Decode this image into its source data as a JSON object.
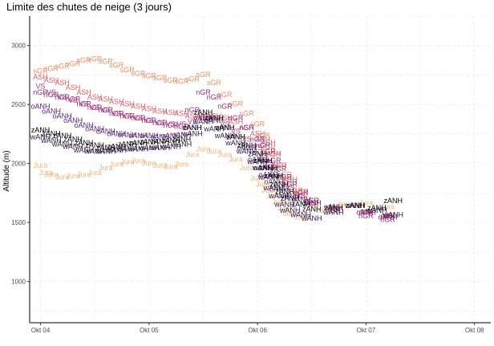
{
  "chart_data": {
    "type": "scatter",
    "title": "Limite des chutes de neige (3 jours)",
    "xlabel": "",
    "ylabel": "Altitude (m)",
    "x_ticks": [
      "Okt 04",
      "Okt 05",
      "Okt 06",
      "Okt 07",
      "Okt 08"
    ],
    "y_ticks": [
      1000,
      1500,
      2000,
      2500,
      3000
    ],
    "xlim": [
      -0.1,
      4.15
    ],
    "ylim": [
      650,
      3250
    ],
    "grid": true,
    "legend": "none",
    "colors": {
      "Jura": "#f0b57a",
      "sGR": "#e98d66",
      "ASH": "#de5d66",
      "VS": "#b23c78",
      "nGR": "#8e2e83",
      "oANH": "#5d2479",
      "wANH": "#2a1742",
      "zANH": "#000000"
    },
    "series": [
      {
        "name": "sGR",
        "points": [
          [
            0.0,
            2780
          ],
          [
            0.1,
            2800
          ],
          [
            0.2,
            2820
          ],
          [
            0.3,
            2840
          ],
          [
            0.4,
            2870
          ],
          [
            0.5,
            2880
          ],
          [
            0.6,
            2860
          ],
          [
            0.7,
            2830
          ],
          [
            0.8,
            2790
          ],
          [
            0.9,
            2760
          ],
          [
            1.0,
            2740
          ],
          [
            1.1,
            2720
          ],
          [
            1.2,
            2700
          ],
          [
            1.3,
            2690
          ],
          [
            1.4,
            2710
          ],
          [
            1.5,
            2750
          ],
          [
            1.6,
            2680
          ],
          [
            1.7,
            2580
          ],
          [
            1.8,
            2500
          ],
          [
            1.9,
            2420
          ],
          [
            2.0,
            2330
          ],
          [
            2.05,
            2230
          ],
          [
            2.1,
            2130
          ],
          [
            2.15,
            2070
          ],
          [
            2.2,
            1980
          ],
          [
            2.25,
            1900
          ],
          [
            2.3,
            1840
          ],
          [
            2.35,
            1770
          ],
          [
            2.4,
            1720
          ],
          [
            2.5,
            1650
          ],
          [
            2.7,
            1600
          ],
          [
            3.0,
            1580
          ],
          [
            3.2,
            1550
          ]
        ]
      },
      {
        "name": "ASH",
        "points": [
          [
            0.0,
            2730
          ],
          [
            0.1,
            2700
          ],
          [
            0.2,
            2680
          ],
          [
            0.3,
            2640
          ],
          [
            0.4,
            2600
          ],
          [
            0.5,
            2560
          ],
          [
            0.6,
            2540
          ],
          [
            0.7,
            2520
          ],
          [
            0.8,
            2500
          ],
          [
            0.9,
            2480
          ],
          [
            1.0,
            2460
          ],
          [
            1.1,
            2440
          ],
          [
            1.2,
            2430
          ],
          [
            1.3,
            2420
          ],
          [
            1.4,
            2400
          ],
          [
            1.5,
            2390
          ],
          [
            1.6,
            2400
          ],
          [
            1.7,
            2380
          ],
          [
            1.8,
            2350
          ],
          [
            1.9,
            2300
          ],
          [
            2.0,
            2250
          ],
          [
            2.05,
            2200
          ],
          [
            2.1,
            2170
          ],
          [
            2.15,
            2080
          ],
          [
            2.2,
            1980
          ],
          [
            2.3,
            1860
          ],
          [
            2.4,
            1760
          ],
          [
            2.5,
            1680
          ],
          [
            2.7,
            1620
          ],
          [
            3.0,
            1580
          ],
          [
            3.2,
            1550
          ]
        ]
      },
      {
        "name": "VS",
        "points": [
          [
            0.0,
            2650
          ],
          [
            0.1,
            2600
          ],
          [
            0.2,
            2560
          ],
          [
            0.3,
            2530
          ],
          [
            0.4,
            2500
          ],
          [
            0.5,
            2470
          ],
          [
            0.6,
            2450
          ],
          [
            0.7,
            2420
          ],
          [
            0.8,
            2400
          ],
          [
            0.9,
            2380
          ],
          [
            1.0,
            2360
          ],
          [
            1.1,
            2340
          ],
          [
            1.2,
            2330
          ],
          [
            1.3,
            2330
          ],
          [
            1.4,
            2350
          ],
          [
            1.5,
            2400
          ],
          [
            1.6,
            2380
          ],
          [
            1.7,
            2330
          ],
          [
            1.8,
            2270
          ],
          [
            1.9,
            2200
          ],
          [
            2.0,
            2130
          ],
          [
            2.05,
            2060
          ],
          [
            2.1,
            2000
          ],
          [
            2.15,
            1940
          ],
          [
            2.2,
            1880
          ],
          [
            2.3,
            1790
          ],
          [
            2.4,
            1720
          ],
          [
            2.5,
            1660
          ],
          [
            2.7,
            1610
          ],
          [
            3.0,
            1580
          ],
          [
            3.2,
            1550
          ]
        ]
      },
      {
        "name": "nGR",
        "points": [
          [
            0.0,
            2600
          ],
          [
            0.1,
            2580
          ],
          [
            0.2,
            2560
          ],
          [
            0.3,
            2540
          ],
          [
            0.4,
            2500
          ],
          [
            0.5,
            2470
          ],
          [
            0.6,
            2450
          ],
          [
            0.7,
            2420
          ],
          [
            0.8,
            2400
          ],
          [
            0.9,
            2380
          ],
          [
            1.0,
            2360
          ],
          [
            1.1,
            2340
          ],
          [
            1.2,
            2320
          ],
          [
            1.3,
            2310
          ],
          [
            1.4,
            2450
          ],
          [
            1.5,
            2600
          ],
          [
            1.6,
            2560
          ],
          [
            1.7,
            2480
          ],
          [
            1.8,
            2380
          ],
          [
            1.9,
            2300
          ],
          [
            2.0,
            2200
          ],
          [
            2.05,
            2150
          ],
          [
            2.1,
            2100
          ],
          [
            2.15,
            2020
          ],
          [
            2.2,
            1950
          ],
          [
            2.25,
            1880
          ],
          [
            2.3,
            1820
          ],
          [
            2.4,
            1750
          ],
          [
            2.5,
            1680
          ],
          [
            2.7,
            1600
          ],
          [
            3.0,
            1550
          ],
          [
            3.2,
            1520
          ]
        ]
      },
      {
        "name": "oANH",
        "points": [
          [
            0.0,
            2480
          ],
          [
            0.1,
            2440
          ],
          [
            0.2,
            2400
          ],
          [
            0.3,
            2360
          ],
          [
            0.4,
            2320
          ],
          [
            0.5,
            2290
          ],
          [
            0.6,
            2270
          ],
          [
            0.7,
            2250
          ],
          [
            0.8,
            2240
          ],
          [
            0.9,
            2230
          ],
          [
            1.0,
            2230
          ],
          [
            1.1,
            2220
          ],
          [
            1.2,
            2230
          ],
          [
            1.3,
            2240
          ],
          [
            1.4,
            2300
          ],
          [
            1.5,
            2380
          ],
          [
            1.6,
            2360
          ],
          [
            1.7,
            2300
          ],
          [
            1.8,
            2220
          ],
          [
            1.9,
            2130
          ],
          [
            2.0,
            2030
          ],
          [
            2.05,
            1960
          ],
          [
            2.1,
            1900
          ],
          [
            2.15,
            1840
          ],
          [
            2.2,
            1780
          ],
          [
            2.3,
            1720
          ],
          [
            2.4,
            1690
          ],
          [
            2.5,
            1660
          ],
          [
            2.7,
            1630
          ],
          [
            3.0,
            1580
          ],
          [
            3.2,
            1540
          ]
        ]
      },
      {
        "name": "Jura",
        "points": [
          [
            0.0,
            1980
          ],
          [
            0.05,
            1920
          ],
          [
            0.1,
            1900
          ],
          [
            0.2,
            1880
          ],
          [
            0.3,
            1890
          ],
          [
            0.4,
            1900
          ],
          [
            0.5,
            1920
          ],
          [
            0.6,
            1960
          ],
          [
            0.7,
            1990
          ],
          [
            0.8,
            2010
          ],
          [
            0.9,
            2020
          ],
          [
            1.0,
            2000
          ],
          [
            1.1,
            1980
          ],
          [
            1.2,
            1970
          ],
          [
            1.3,
            1990
          ],
          [
            1.4,
            2070
          ],
          [
            1.5,
            2120
          ],
          [
            1.6,
            2100
          ],
          [
            1.7,
            2070
          ],
          [
            1.8,
            2030
          ],
          [
            1.9,
            1960
          ],
          [
            2.0,
            1870
          ],
          [
            2.05,
            1820
          ],
          [
            2.1,
            1770
          ],
          [
            2.15,
            1720
          ],
          [
            2.2,
            1670
          ],
          [
            2.25,
            1620
          ],
          [
            2.3,
            1570
          ],
          [
            2.4,
            1540
          ],
          [
            2.6,
            1600
          ],
          [
            2.8,
            1650
          ],
          [
            3.0,
            1660
          ],
          [
            3.2,
            1630
          ]
        ]
      },
      {
        "name": "wANH",
        "points": [
          [
            0.0,
            2220
          ],
          [
            0.1,
            2190
          ],
          [
            0.2,
            2160
          ],
          [
            0.3,
            2140
          ],
          [
            0.4,
            2110
          ],
          [
            0.5,
            2100
          ],
          [
            0.6,
            2100
          ],
          [
            0.7,
            2110
          ],
          [
            0.8,
            2120
          ],
          [
            0.9,
            2120
          ],
          [
            1.0,
            2130
          ],
          [
            1.1,
            2130
          ],
          [
            1.2,
            2140
          ],
          [
            1.3,
            2160
          ],
          [
            1.4,
            2250
          ],
          [
            1.5,
            2350
          ],
          [
            1.6,
            2290
          ],
          [
            1.7,
            2230
          ],
          [
            1.8,
            2170
          ],
          [
            1.9,
            2100
          ],
          [
            2.0,
            2010
          ],
          [
            2.05,
            1960
          ],
          [
            2.1,
            1880
          ],
          [
            2.15,
            1790
          ],
          [
            2.2,
            1720
          ],
          [
            2.25,
            1650
          ],
          [
            2.3,
            1600
          ],
          [
            2.4,
            1560
          ],
          [
            2.5,
            1530
          ],
          [
            2.7,
            1580
          ],
          [
            2.9,
            1640
          ],
          [
            3.1,
            1600
          ],
          [
            3.25,
            1560
          ]
        ]
      },
      {
        "name": "zANH",
        "points": [
          [
            0.0,
            2280
          ],
          [
            0.1,
            2250
          ],
          [
            0.2,
            2230
          ],
          [
            0.3,
            2200
          ],
          [
            0.4,
            2170
          ],
          [
            0.5,
            2150
          ],
          [
            0.6,
            2130
          ],
          [
            0.7,
            2140
          ],
          [
            0.8,
            2160
          ],
          [
            0.9,
            2170
          ],
          [
            1.0,
            2180
          ],
          [
            1.1,
            2180
          ],
          [
            1.2,
            2190
          ],
          [
            1.3,
            2200
          ],
          [
            1.4,
            2300
          ],
          [
            1.5,
            2430
          ],
          [
            1.6,
            2380
          ],
          [
            1.7,
            2300
          ],
          [
            1.8,
            2220
          ],
          [
            1.9,
            2150
          ],
          [
            2.0,
            2080
          ],
          [
            2.05,
            2020
          ],
          [
            2.1,
            1960
          ],
          [
            2.15,
            1890
          ],
          [
            2.2,
            1820
          ],
          [
            2.25,
            1760
          ],
          [
            2.3,
            1700
          ],
          [
            2.4,
            1650
          ],
          [
            2.5,
            1610
          ],
          [
            2.7,
            1620
          ],
          [
            2.9,
            1640
          ],
          [
            3.1,
            1620
          ],
          [
            3.25,
            1680
          ]
        ]
      }
    ]
  }
}
